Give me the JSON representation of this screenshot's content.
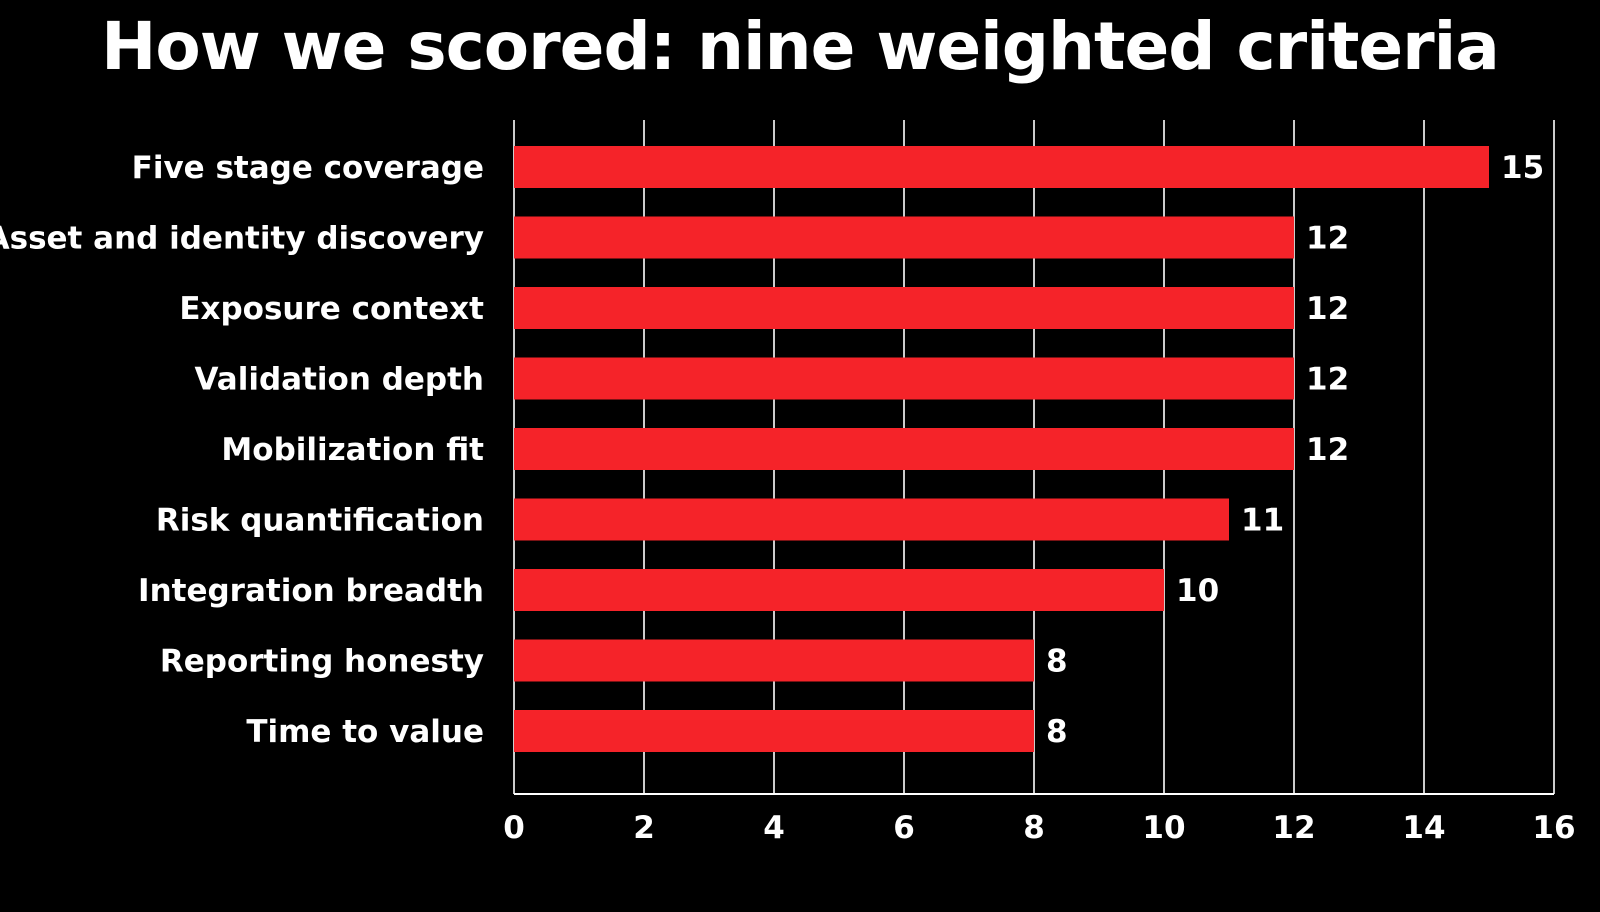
{
  "chart_data": {
    "type": "bar",
    "orientation": "horizontal",
    "title": "How we scored: nine weighted criteria",
    "xlabel": "",
    "ylabel": "",
    "categories": [
      "Five stage coverage",
      "Asset and identity discovery",
      "Exposure context",
      "Validation depth",
      "Mobilization fit",
      "Risk quantification",
      "Integration breadth",
      "Reporting honesty",
      "Time to value"
    ],
    "values": [
      15,
      12,
      12,
      12,
      12,
      11,
      10,
      8,
      8
    ],
    "value_labels": [
      "15",
      "12",
      "12",
      "12",
      "12",
      "11",
      "10",
      "8",
      "8"
    ],
    "xlim": [
      0,
      16
    ],
    "xticks": [
      "0",
      "2",
      "4",
      "6",
      "8",
      "10",
      "12",
      "14",
      "16"
    ],
    "grid": "vertical",
    "legend": "none",
    "colors": {
      "background": "#000000",
      "bar": "#f52329",
      "text": "#ffffff",
      "grid": "#ffffff"
    }
  }
}
